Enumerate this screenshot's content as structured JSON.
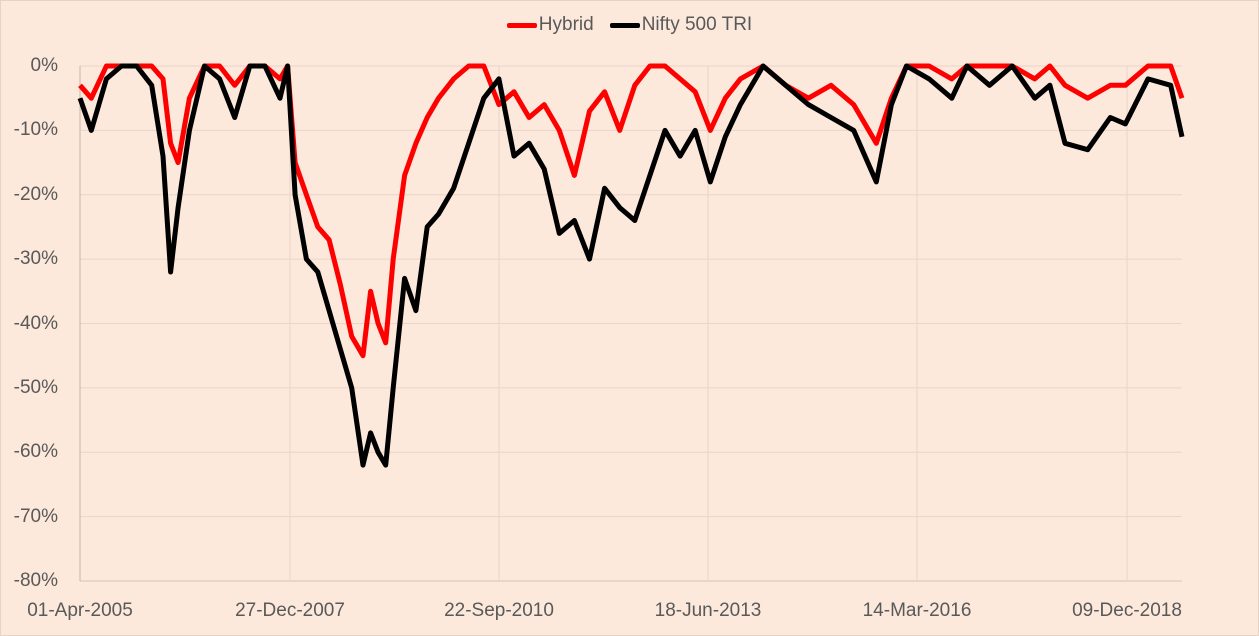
{
  "chart_data": {
    "type": "line",
    "title": "",
    "xlabel": "",
    "ylabel": "",
    "ylim": [
      -80,
      0
    ],
    "grid": true,
    "legend_position": "top",
    "legend": [
      "Hybrid",
      "Nifty 500 TRI"
    ],
    "y_ticks": [
      "0%",
      "-10%",
      "-20%",
      "-30%",
      "-40%",
      "-50%",
      "-60%",
      "-70%",
      "-80%"
    ],
    "x_ticks": [
      "01-Apr-2005",
      "27-Dec-2007",
      "22-Sep-2010",
      "18-Jun-2013",
      "14-Mar-2016",
      "09-Dec-2018"
    ],
    "x": [
      2005.25,
      2005.4,
      2005.6,
      2005.8,
      2006.0,
      2006.2,
      2006.35,
      2006.45,
      2006.55,
      2006.7,
      2006.9,
      2007.1,
      2007.3,
      2007.5,
      2007.7,
      2007.9,
      2008.0,
      2008.1,
      2008.25,
      2008.4,
      2008.55,
      2008.7,
      2008.85,
      2009.0,
      2009.1,
      2009.2,
      2009.3,
      2009.4,
      2009.55,
      2009.7,
      2009.85,
      2010.0,
      2010.2,
      2010.4,
      2010.6,
      2010.8,
      2011.0,
      2011.2,
      2011.4,
      2011.6,
      2011.8,
      2012.0,
      2012.2,
      2012.4,
      2012.6,
      2012.8,
      2013.0,
      2013.2,
      2013.4,
      2013.6,
      2013.8,
      2014.0,
      2014.3,
      2014.6,
      2014.9,
      2015.2,
      2015.5,
      2015.8,
      2016.0,
      2016.2,
      2016.5,
      2016.8,
      2017.0,
      2017.3,
      2017.6,
      2017.9,
      2018.1,
      2018.3,
      2018.6,
      2018.9,
      2019.1,
      2019.4,
      2019.7,
      2019.85
    ],
    "series": [
      {
        "name": "Hybrid",
        "color": "#ff0000",
        "values": [
          -3,
          -5,
          0,
          0,
          0,
          0,
          -2,
          -12,
          -15,
          -5,
          0,
          0,
          -3,
          0,
          0,
          -2,
          0,
          -15,
          -20,
          -25,
          -27,
          -34,
          -42,
          -45,
          -35,
          -40,
          -43,
          -30,
          -17,
          -12,
          -8,
          -5,
          -2,
          0,
          0,
          -6,
          -4,
          -8,
          -6,
          -10,
          -17,
          -7,
          -4,
          -10,
          -3,
          0,
          0,
          -2,
          -4,
          -10,
          -5,
          -2,
          0,
          -3,
          -5,
          -3,
          -6,
          -12,
          -5,
          0,
          0,
          -2,
          0,
          0,
          0,
          -2,
          0,
          -3,
          -5,
          -3,
          -3,
          0,
          0,
          -5
        ]
      },
      {
        "name": "Nifty 500 TRI",
        "color": "#000000",
        "values": [
          -5,
          -10,
          -2,
          0,
          0,
          -3,
          -14,
          -32,
          -22,
          -10,
          0,
          -2,
          -8,
          0,
          0,
          -5,
          0,
          -20,
          -30,
          -32,
          -38,
          -44,
          -50,
          -62,
          -57,
          -60,
          -62,
          -50,
          -33,
          -38,
          -25,
          -23,
          -19,
          -12,
          -5,
          -2,
          -14,
          -12,
          -16,
          -26,
          -24,
          -30,
          -19,
          -22,
          -24,
          -17,
          -10,
          -14,
          -10,
          -18,
          -11,
          -6,
          0,
          -3,
          -6,
          -8,
          -10,
          -18,
          -6,
          0,
          -2,
          -5,
          0,
          -3,
          0,
          -5,
          -3,
          -12,
          -13,
          -8,
          -9,
          -2,
          -3,
          -11
        ]
      }
    ]
  },
  "legend": {
    "items": [
      {
        "label": "Hybrid",
        "color": "#ff0000"
      },
      {
        "label": "Nifty 500 TRI",
        "color": "#000000"
      }
    ]
  },
  "axes": {
    "y_labels": [
      "0%",
      "-10%",
      "-20%",
      "-30%",
      "-40%",
      "-50%",
      "-60%",
      "-70%",
      "-80%"
    ],
    "x_labels": [
      "01-Apr-2005",
      "27-Dec-2007",
      "22-Sep-2010",
      "18-Jun-2013",
      "14-Mar-2016",
      "09-Dec-2018"
    ]
  },
  "style": {
    "background": "#fce9dc",
    "grid_color": "#ead5c7",
    "axis_text_color": "#595959"
  }
}
